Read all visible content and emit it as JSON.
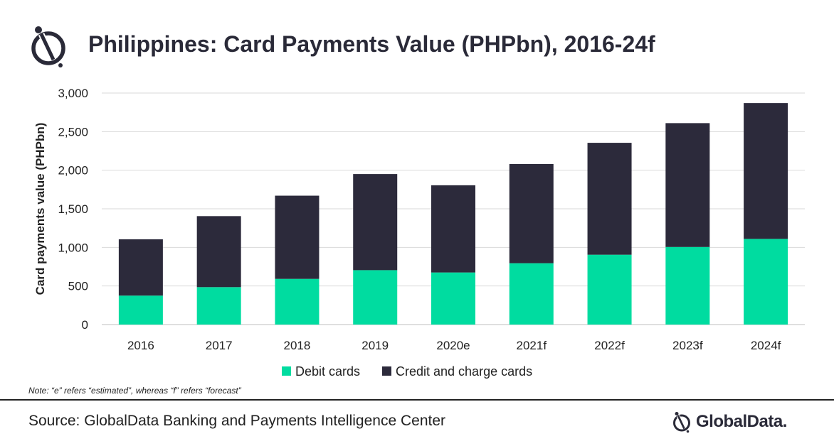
{
  "title": "Philippines: Card Payments Value (PHPbn), 2016-24f",
  "note": "Note: “e” refers “estimated”, whereas “f” refers “forecast”",
  "source": "Source: GlobalData Banking and Payments Intelligence Center",
  "brand": {
    "name": "GlobalData.",
    "icon": "globaldata-logo-icon"
  },
  "colors": {
    "debit": "#00DCA0",
    "credit": "#2C2A3B",
    "grid": "#D9D9D9",
    "text": "#222222"
  },
  "chart_data": {
    "type": "bar",
    "stacked": true,
    "categories": [
      "2016",
      "2017",
      "2018",
      "2019",
      "2020e",
      "2021f",
      "2022f",
      "2023f",
      "2024f"
    ],
    "series": [
      {
        "name": "Debit cards",
        "color": "#00DCA0",
        "values": [
          375,
          485,
          592,
          705,
          675,
          795,
          905,
          1005,
          1110
        ]
      },
      {
        "name": "Credit and charge cards",
        "color": "#2C2A3B",
        "values": [
          730,
          920,
          1078,
          1245,
          1130,
          1285,
          1450,
          1605,
          1760
        ]
      }
    ],
    "xlabel": "",
    "ylabel": "Card payments value (PHPbn)",
    "ylim": [
      0,
      3000
    ],
    "yticks": [
      0,
      500,
      1000,
      1500,
      2000,
      2500,
      3000
    ],
    "ytick_labels": [
      "0",
      "500",
      "1,000",
      "1,500",
      "2,000",
      "2,500",
      "3,000"
    ],
    "grid": true,
    "legend_position": "bottom"
  }
}
